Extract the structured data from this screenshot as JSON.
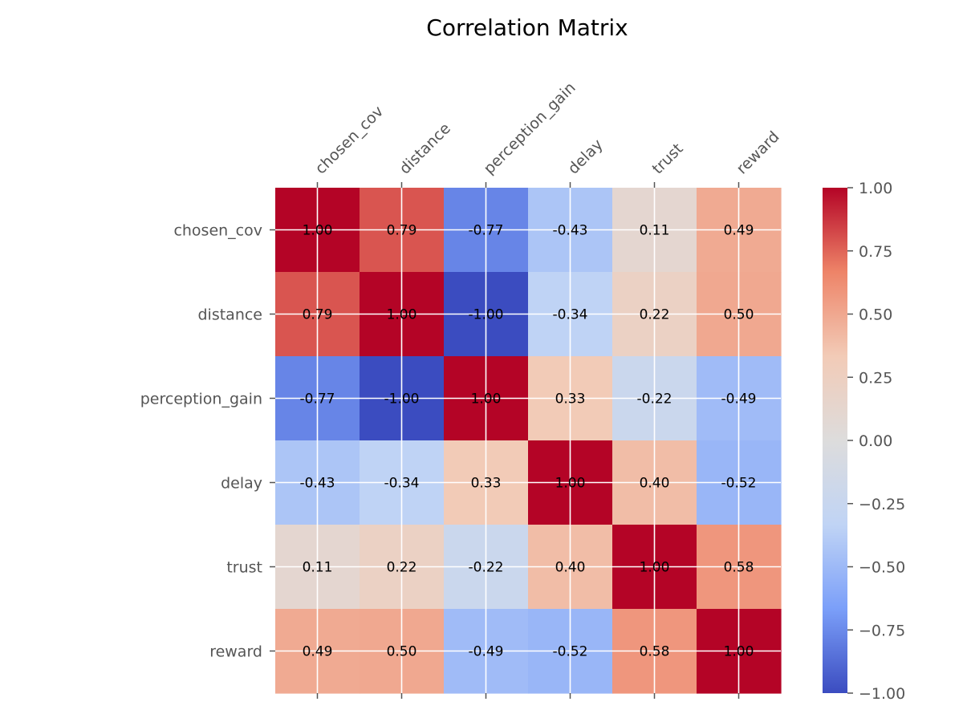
{
  "chart_data": {
    "type": "heatmap",
    "title": "Correlation Matrix",
    "variables": [
      "chosen_cov",
      "distance",
      "perception_gain",
      "delay",
      "trust",
      "reward"
    ],
    "values": [
      [
        1.0,
        0.79,
        -0.77,
        -0.43,
        0.11,
        0.49
      ],
      [
        0.79,
        1.0,
        -1.0,
        -0.34,
        0.22,
        0.5
      ],
      [
        -0.77,
        -1.0,
        1.0,
        0.33,
        -0.22,
        -0.49
      ],
      [
        -0.43,
        -0.34,
        0.33,
        1.0,
        0.4,
        -0.52
      ],
      [
        0.11,
        0.22,
        -0.22,
        0.4,
        1.0,
        0.58
      ],
      [
        0.49,
        0.5,
        -0.49,
        -0.52,
        0.58,
        1.0
      ]
    ],
    "value_labels": [
      [
        "1.00",
        "0.79",
        "-0.77",
        "-0.43",
        "0.11",
        "0.49"
      ],
      [
        "0.79",
        "1.00",
        "-1.00",
        "-0.34",
        "0.22",
        "0.50"
      ],
      [
        "-0.77",
        "-1.00",
        "1.00",
        "0.33",
        "-0.22",
        "-0.49"
      ],
      [
        "-0.43",
        "-0.34",
        "0.33",
        "1.00",
        "0.40",
        "-0.52"
      ],
      [
        "0.11",
        "0.22",
        "-0.22",
        "0.40",
        "1.00",
        "0.58"
      ],
      [
        "0.49",
        "0.50",
        "-0.49",
        "-0.52",
        "0.58",
        "1.00"
      ]
    ],
    "colormap": "coolwarm",
    "vmin": -1.0,
    "vmax": 1.0,
    "colorbar_ticks": [
      1.0,
      0.75,
      0.5,
      0.25,
      0.0,
      -0.25,
      -0.5,
      -0.75,
      -1.0
    ],
    "colorbar_tick_labels": [
      "1.00",
      "0.75",
      "0.50",
      "0.25",
      "0.00",
      "−0.25",
      "−0.50",
      "−0.75",
      "−1.00"
    ],
    "colormap_stops": [
      "#3b4cc0",
      "#7b9ff9",
      "#c0d4f5",
      "#dddcdc",
      "#f2cbb7",
      "#ee8468",
      "#b40426"
    ],
    "grid": true,
    "x_tick_position": "top",
    "x_tick_rotation": "45 degrees"
  }
}
